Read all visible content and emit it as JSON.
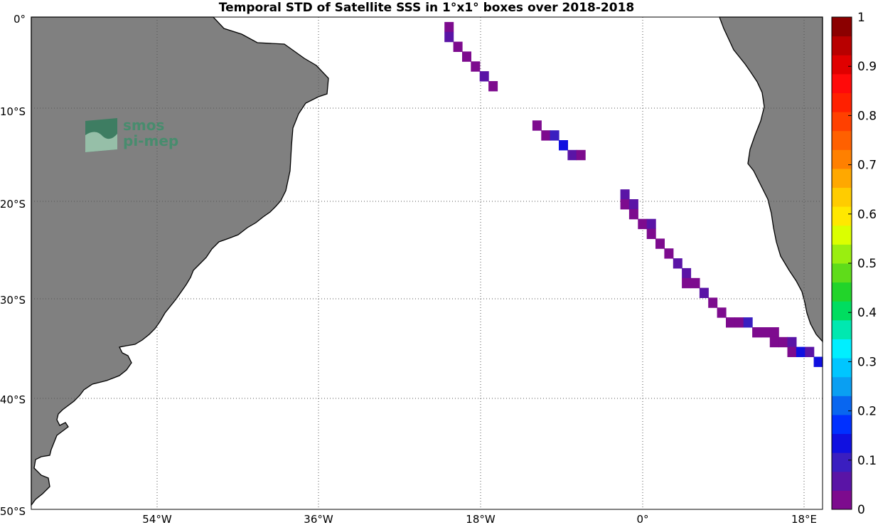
{
  "title": "Temporal STD of Satellite SSS in 1°x1° boxes over 2018-2018",
  "logo": {
    "line1": "smos",
    "line2": "pi-mep"
  },
  "colors": {
    "land": "#808080",
    "ocean": "#ffffff",
    "grid": "#555555",
    "coast": "#000000"
  },
  "map": {
    "lon_range": [
      -70.5,
      19.5
    ],
    "lat_range": [
      -50,
      0
    ]
  },
  "axes": {
    "lat_ticks": [
      {
        "value": 0,
        "label": "0°"
      },
      {
        "value": -10,
        "label": "10°S"
      },
      {
        "value": -20,
        "label": "20°S"
      },
      {
        "value": -30,
        "label": "30°S"
      },
      {
        "value": -40,
        "label": "40°S"
      },
      {
        "value": -50,
        "label": "50°S"
      }
    ],
    "lon_ticks": [
      {
        "value": -54,
        "label": "54°W"
      },
      {
        "value": -36,
        "label": "36°W"
      },
      {
        "value": -18,
        "label": "18°W"
      },
      {
        "value": 0,
        "label": "0°"
      },
      {
        "value": 18,
        "label": "18°E"
      }
    ]
  },
  "colorbar": {
    "min": 0,
    "max": 1,
    "tick_labels": [
      "0",
      "0.1",
      "0.2",
      "0.3",
      "0.4",
      "0.5",
      "0.6",
      "0.7",
      "0.8",
      "0.9",
      "1"
    ],
    "colors": [
      "#7d0b8e",
      "#5a14a6",
      "#3a1ec0",
      "#1010e0",
      "#0030ff",
      "#0866f0",
      "#0a9ff2",
      "#00c6ff",
      "#00efff",
      "#00e8b0",
      "#00dd60",
      "#22d42a",
      "#5fdc1a",
      "#9aee10",
      "#dbff00",
      "#ffe800",
      "#ffcc00",
      "#ffa800",
      "#ff8000",
      "#ff6000",
      "#ff4000",
      "#ff2000",
      "#ff0a0a",
      "#e00000",
      "#b80000",
      "#8b0000"
    ]
  },
  "chart_data": {
    "type": "heatmap",
    "units": "1°x1° boxes",
    "cells": [
      {
        "lon": -23,
        "lat": -1,
        "value": 0.02
      },
      {
        "lon": -23,
        "lat": -2,
        "value": 0.06
      },
      {
        "lon": -22,
        "lat": -3,
        "value": 0.03
      },
      {
        "lon": -21,
        "lat": -4,
        "value": 0.02
      },
      {
        "lon": -20,
        "lat": -5,
        "value": 0.02
      },
      {
        "lon": -19,
        "lat": -6,
        "value": 0.05
      },
      {
        "lon": -18,
        "lat": -7,
        "value": 0.02
      },
      {
        "lon": -13,
        "lat": -11,
        "value": 0.02
      },
      {
        "lon": -12,
        "lat": -12,
        "value": 0.03
      },
      {
        "lon": -11,
        "lat": -12,
        "value": 0.1
      },
      {
        "lon": -10,
        "lat": -13,
        "value": 0.14
      },
      {
        "lon": -9,
        "lat": -14,
        "value": 0.05
      },
      {
        "lon": -8,
        "lat": -14,
        "value": 0.03
      },
      {
        "lon": -3,
        "lat": -18,
        "value": 0.05
      },
      {
        "lon": -3,
        "lat": -19,
        "value": 0.03
      },
      {
        "lon": -2,
        "lat": -19,
        "value": 0.06
      },
      {
        "lon": -2,
        "lat": -20,
        "value": 0.03
      },
      {
        "lon": -1,
        "lat": -21,
        "value": 0.03
      },
      {
        "lon": 0,
        "lat": -21,
        "value": 0.05
      },
      {
        "lon": 0,
        "lat": -22,
        "value": 0.03
      },
      {
        "lon": 1,
        "lat": -23,
        "value": 0.02
      },
      {
        "lon": 2,
        "lat": -24,
        "value": 0.03
      },
      {
        "lon": 3,
        "lat": -25,
        "value": 0.04
      },
      {
        "lon": 4,
        "lat": -26,
        "value": 0.06
      },
      {
        "lon": 4,
        "lat": -27,
        "value": 0.03
      },
      {
        "lon": 5,
        "lat": -27,
        "value": 0.02
      },
      {
        "lon": 6,
        "lat": -28,
        "value": 0.05
      },
      {
        "lon": 7,
        "lat": -29,
        "value": 0.03
      },
      {
        "lon": 8,
        "lat": -30,
        "value": 0.03
      },
      {
        "lon": 9,
        "lat": -31,
        "value": 0.02
      },
      {
        "lon": 10,
        "lat": -31,
        "value": 0.03
      },
      {
        "lon": 11,
        "lat": -31,
        "value": 0.08
      },
      {
        "lon": 12,
        "lat": -32,
        "value": 0.03
      },
      {
        "lon": 13,
        "lat": -32,
        "value": 0.02
      },
      {
        "lon": 14,
        "lat": -32,
        "value": 0.03
      },
      {
        "lon": 14,
        "lat": -33,
        "value": 0.02
      },
      {
        "lon": 15,
        "lat": -33,
        "value": 0.03
      },
      {
        "lon": 16,
        "lat": -33,
        "value": 0.05
      },
      {
        "lon": 16,
        "lat": -34,
        "value": 0.03
      },
      {
        "lon": 17,
        "lat": -34,
        "value": 0.12
      },
      {
        "lon": 18,
        "lat": -34,
        "value": 0.05
      },
      {
        "lon": 19,
        "lat": -35,
        "value": 0.13
      }
    ]
  }
}
